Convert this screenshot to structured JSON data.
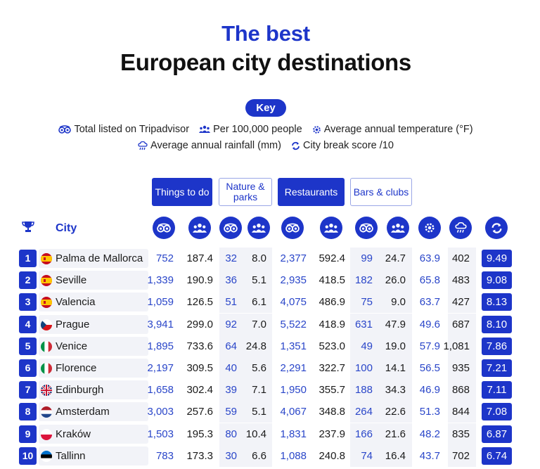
{
  "title_line1": "The best",
  "title_line2": "European city destinations",
  "key": {
    "label": "Key",
    "items": [
      {
        "icon": "tripadvisor-icon",
        "text": "Total listed on Tripadvisor"
      },
      {
        "icon": "people-icon",
        "text": "Per 100,000 people"
      },
      {
        "icon": "thermometer-gear-icon",
        "text": "Average annual temperature (°F)"
      },
      {
        "icon": "rain-cloud-icon",
        "text": "Average annual rainfall (mm)"
      },
      {
        "icon": "refresh-score-icon",
        "text": "City break score /10"
      }
    ]
  },
  "column_groups": [
    "Things to do",
    "Nature & parks",
    "Restaurants",
    "Bars & clubs"
  ],
  "city_header": "City",
  "colors": {
    "accent": "#1d35c9",
    "value_blue": "#2a46c9",
    "stripe": "#f2f3f8"
  },
  "chart_data": {
    "type": "table",
    "title": "The best European city destinations",
    "columns": [
      "Rank",
      "City",
      "Things to do - Total listed on Tripadvisor",
      "Things to do - Per 100,000 people",
      "Nature & parks - Total listed on Tripadvisor",
      "Nature & parks - Per 100,000 people",
      "Restaurants - Total listed on Tripadvisor",
      "Restaurants - Per 100,000 people",
      "Bars & clubs - Total listed on Tripadvisor",
      "Bars & clubs - Per 100,000 people",
      "Average annual temperature (°F)",
      "Average annual rainfall (mm)",
      "City break score /10"
    ],
    "rows": [
      {
        "rank": "1",
        "city": "Palma de Mallorca",
        "flag": "es",
        "values": [
          "752",
          "187.4",
          "32",
          "8.0",
          "2,377",
          "592.4",
          "99",
          "24.7",
          "63.9",
          "402"
        ],
        "score": "9.49"
      },
      {
        "rank": "2",
        "city": "Seville",
        "flag": "es",
        "values": [
          "1,339",
          "190.9",
          "36",
          "5.1",
          "2,935",
          "418.5",
          "182",
          "26.0",
          "65.8",
          "483"
        ],
        "score": "9.08"
      },
      {
        "rank": "3",
        "city": "Valencia",
        "flag": "es",
        "values": [
          "1,059",
          "126.5",
          "51",
          "6.1",
          "4,075",
          "486.9",
          "75",
          "9.0",
          "63.7",
          "427"
        ],
        "score": "8.13"
      },
      {
        "rank": "4",
        "city": "Prague",
        "flag": "cz",
        "values": [
          "3,941",
          "299.0",
          "92",
          "7.0",
          "5,522",
          "418.9",
          "631",
          "47.9",
          "49.6",
          "687"
        ],
        "score": "8.10"
      },
      {
        "rank": "5",
        "city": "Venice",
        "flag": "it",
        "values": [
          "1,895",
          "733.6",
          "64",
          "24.8",
          "1,351",
          "523.0",
          "49",
          "19.0",
          "57.9",
          "1,081"
        ],
        "score": "7.86"
      },
      {
        "rank": "6",
        "city": "Florence",
        "flag": "it",
        "values": [
          "2,197",
          "309.5",
          "40",
          "5.6",
          "2,291",
          "322.7",
          "100",
          "14.1",
          "56.5",
          "935"
        ],
        "score": "7.21"
      },
      {
        "rank": "7",
        "city": "Edinburgh",
        "flag": "uk",
        "values": [
          "1,658",
          "302.4",
          "39",
          "7.1",
          "1,950",
          "355.7",
          "188",
          "34.3",
          "46.9",
          "868"
        ],
        "score": "7.11"
      },
      {
        "rank": "8",
        "city": "Amsterdam",
        "flag": "nl",
        "values": [
          "3,003",
          "257.6",
          "59",
          "5.1",
          "4,067",
          "348.8",
          "264",
          "22.6",
          "51.3",
          "844"
        ],
        "score": "7.08"
      },
      {
        "rank": "9",
        "city": "Kraków",
        "flag": "pl",
        "values": [
          "1,503",
          "195.3",
          "80",
          "10.4",
          "1,831",
          "237.9",
          "166",
          "21.6",
          "48.2",
          "835"
        ],
        "score": "6.87"
      },
      {
        "rank": "10",
        "city": "Tallinn",
        "flag": "ee",
        "values": [
          "783",
          "173.3",
          "30",
          "6.6",
          "1,088",
          "240.8",
          "74",
          "16.4",
          "43.7",
          "702"
        ],
        "score": "6.74"
      }
    ]
  }
}
